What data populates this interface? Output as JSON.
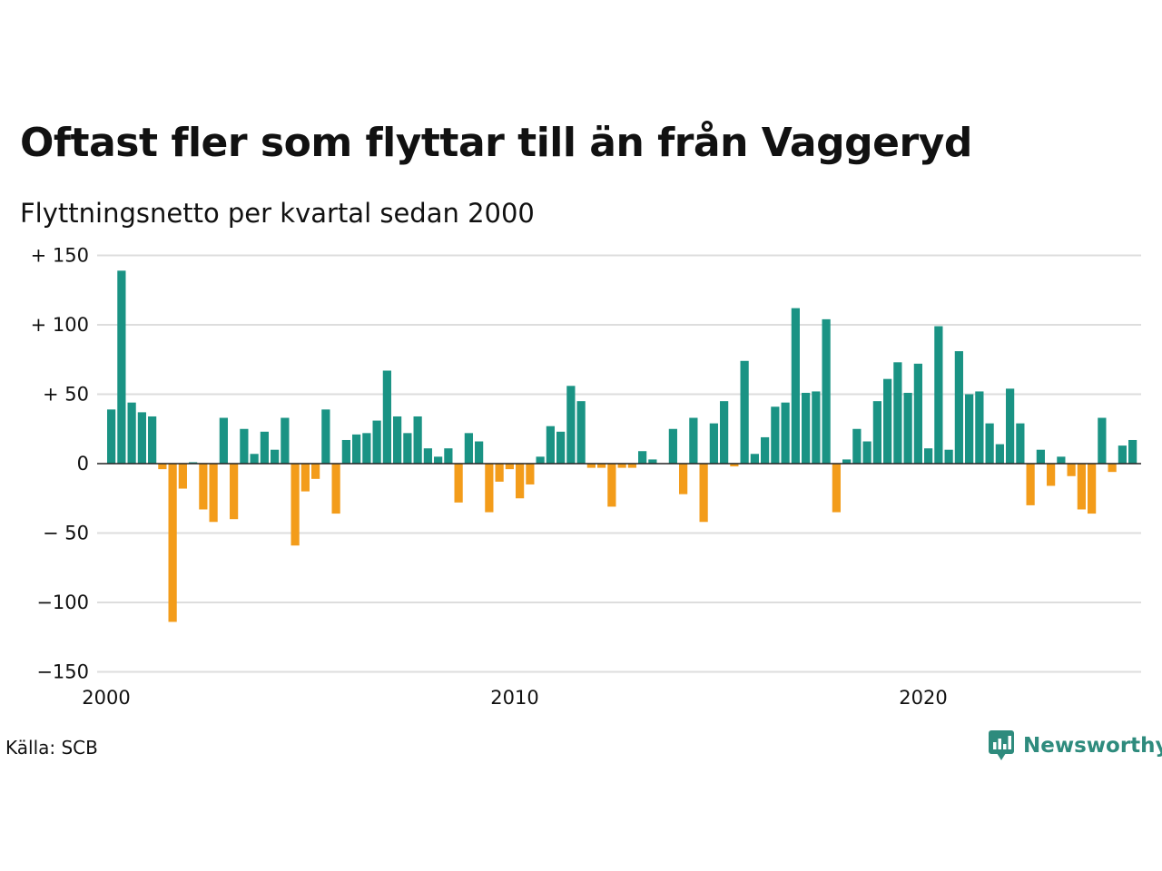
{
  "header": {
    "title": "Oftast fler som flyttar till än från Vaggeryd",
    "subtitle": "Flyttningsnetto per kvartal sedan 2000"
  },
  "footer": {
    "source": "Källa: SCB",
    "brand": "Newsworthy",
    "brand_icon": "bar-chart-speech-bubble-icon"
  },
  "colors": {
    "positive": "#1a9384",
    "negative": "#f39c1a",
    "grid": "#dddddd",
    "zero_line": "#222222",
    "text": "#111111",
    "brand": "#2e8b7d"
  },
  "chart_data": {
    "type": "bar",
    "x_start": "2000 Q1",
    "x_ticks": [
      {
        "label": "2000",
        "year": 2000
      },
      {
        "label": "2010",
        "year": 2010
      },
      {
        "label": "2020",
        "year": 2020
      }
    ],
    "y_ticks": [
      {
        "label": "+ 150",
        "value": 150
      },
      {
        "label": "+ 100",
        "value": 100
      },
      {
        "label": "+  50",
        "value": 50
      },
      {
        "label": "0",
        "value": 0
      },
      {
        "label": "− 50",
        "value": -50
      },
      {
        "label": "−100",
        "value": -100
      },
      {
        "label": "−150",
        "value": -150
      }
    ],
    "ylim": [
      -150,
      150
    ],
    "grid": true,
    "values": [
      39,
      139,
      44,
      37,
      34,
      -4,
      -114,
      -18,
      1,
      -33,
      -42,
      33,
      -40,
      25,
      7,
      23,
      10,
      33,
      -59,
      -20,
      -11,
      39,
      -36,
      17,
      21,
      22,
      31,
      67,
      34,
      22,
      34,
      11,
      5,
      11,
      -28,
      22,
      16,
      -35,
      -13,
      -4,
      -25,
      -15,
      5,
      27,
      23,
      56,
      45,
      -3,
      -3,
      -31,
      -3,
      -3,
      9,
      3,
      0,
      25,
      -22,
      33,
      -42,
      29,
      45,
      -2,
      74,
      7,
      19,
      41,
      44,
      112,
      51,
      52,
      104,
      -35,
      3,
      25,
      16,
      45,
      61,
      73,
      51,
      72,
      11,
      99,
      10,
      81,
      50,
      52,
      29,
      14,
      54,
      29,
      -30,
      10,
      -16,
      5,
      -9,
      -33,
      -36,
      33,
      -6,
      13,
      17
    ]
  }
}
